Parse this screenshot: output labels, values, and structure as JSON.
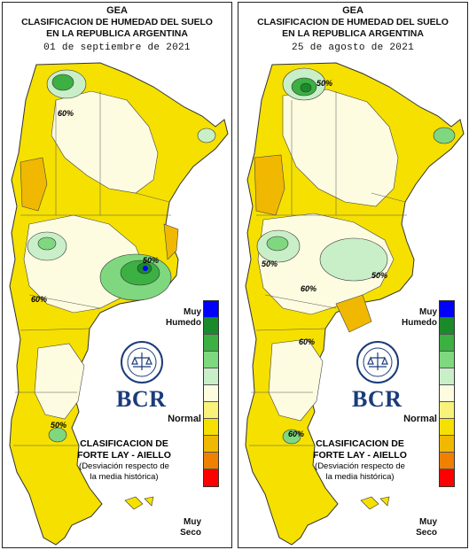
{
  "panels": [
    {
      "org": "GEA",
      "title_line1": "CLASIFICACION DE HUMEDAD DEL SUELO",
      "title_line2": "EN LA REPUBLICA ARGENTINA",
      "date": "01 de septiembre de 2021",
      "isolines": [
        "60%",
        "50%",
        "60%",
        "50%",
        "60%"
      ]
    },
    {
      "org": "GEA",
      "title_line1": "CLASIFICACION DE HUMEDAD DEL SUELO",
      "title_line2": "EN LA REPUBLICA ARGENTINA",
      "date": "25 de agosto de 2021",
      "isolines": [
        "50%",
        "50%",
        "60%",
        "50%",
        "60%",
        "60%"
      ]
    }
  ],
  "legend": {
    "wet_label_1": "Muy",
    "wet_label_2": "Humedo",
    "normal_label": "Normal",
    "dry_label_1": "Muy",
    "dry_label_2": "Seco",
    "colors": [
      "#0000ff",
      "#1a8a2a",
      "#3cb043",
      "#7fd87f",
      "#c9efc9",
      "#fdfce0",
      "#f8f27a",
      "#f5e000",
      "#f0b800",
      "#f08000",
      "#ff0000"
    ]
  },
  "method": {
    "line1": "CLASIFICACION DE",
    "line2": "FORTE LAY - AIELLO",
    "line3": "(Desviación respecto de",
    "line4": "la media histórica)"
  },
  "logo": {
    "text": "BCR",
    "seal_text": "BOLSA DE COMERCIO DE ROSARIO",
    "color": "#1b3c7a"
  }
}
